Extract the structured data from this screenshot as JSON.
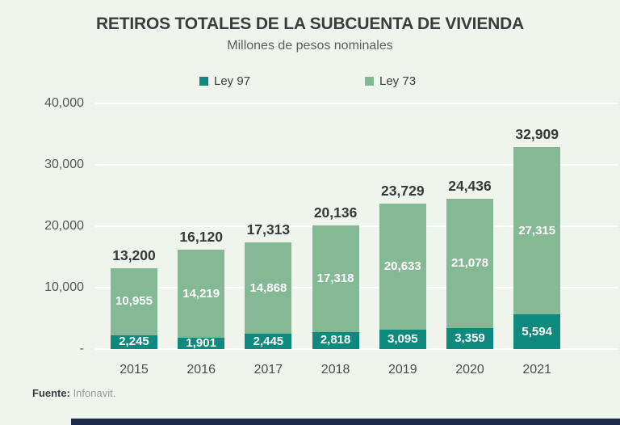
{
  "title": "RETIROS TOTALES DE LA SUBCUENTA DE VIVIENDA",
  "subtitle": "Millones de pesos nominales",
  "legend": [
    {
      "label": "Ley 97",
      "color": "#0d8a7d"
    },
    {
      "label": "Ley 73",
      "color": "#85b894"
    }
  ],
  "source": {
    "label": "Fuente:",
    "value": " Infonavit."
  },
  "colors": {
    "background": "#eff5ed",
    "ley97_teal": "#0d8a7d",
    "ley73_green": "#85b894",
    "gridline": "rgba(255,255,255,0.85)",
    "text_dark": "#3c3c3c",
    "text_gray": "#5d5d5d",
    "bottom_accent_navy": "#1c2b4d",
    "bar_value_text": "#ffffff"
  },
  "chart_data": {
    "type": "bar",
    "stacked": true,
    "title": "RETIROS TOTALES DE LA SUBCUENTA DE VIVIENDA",
    "subtitle": "Millones de pesos nominales",
    "xlabel": "",
    "ylabel": "",
    "ylim": [
      0,
      40000
    ],
    "grid": true,
    "legend_position": "top",
    "categories": [
      "2015",
      "2016",
      "2017",
      "2018",
      "2019",
      "2020",
      "2021"
    ],
    "series": [
      {
        "name": "Ley 97",
        "color": "#0d8a7d",
        "values": [
          2245,
          1901,
          2445,
          2818,
          3095,
          3359,
          5594
        ],
        "labels": [
          "2,245",
          "1,901",
          "2,445",
          "2,818",
          "3,095",
          "3,359",
          "5,594"
        ]
      },
      {
        "name": "Ley 73",
        "color": "#85b894",
        "values": [
          10955,
          14219,
          14868,
          17318,
          20633,
          21078,
          27315
        ],
        "labels": [
          "10,955",
          "14,219",
          "14,868",
          "17,318",
          "20,633",
          "21,078",
          "27,315"
        ]
      }
    ],
    "totals": [
      13200,
      16120,
      17313,
      20136,
      23729,
      24436,
      32909
    ],
    "total_labels": [
      "13,200",
      "16,120",
      "17,313",
      "20,136",
      "23,729",
      "24,436",
      "32,909"
    ],
    "y_ticks": [
      {
        "value": 40000,
        "label": "40,000"
      },
      {
        "value": 30000,
        "label": "30,000"
      },
      {
        "value": 20000,
        "label": "20,000"
      },
      {
        "value": 10000,
        "label": "10,000"
      },
      {
        "value": 0,
        "label": "-"
      }
    ]
  }
}
